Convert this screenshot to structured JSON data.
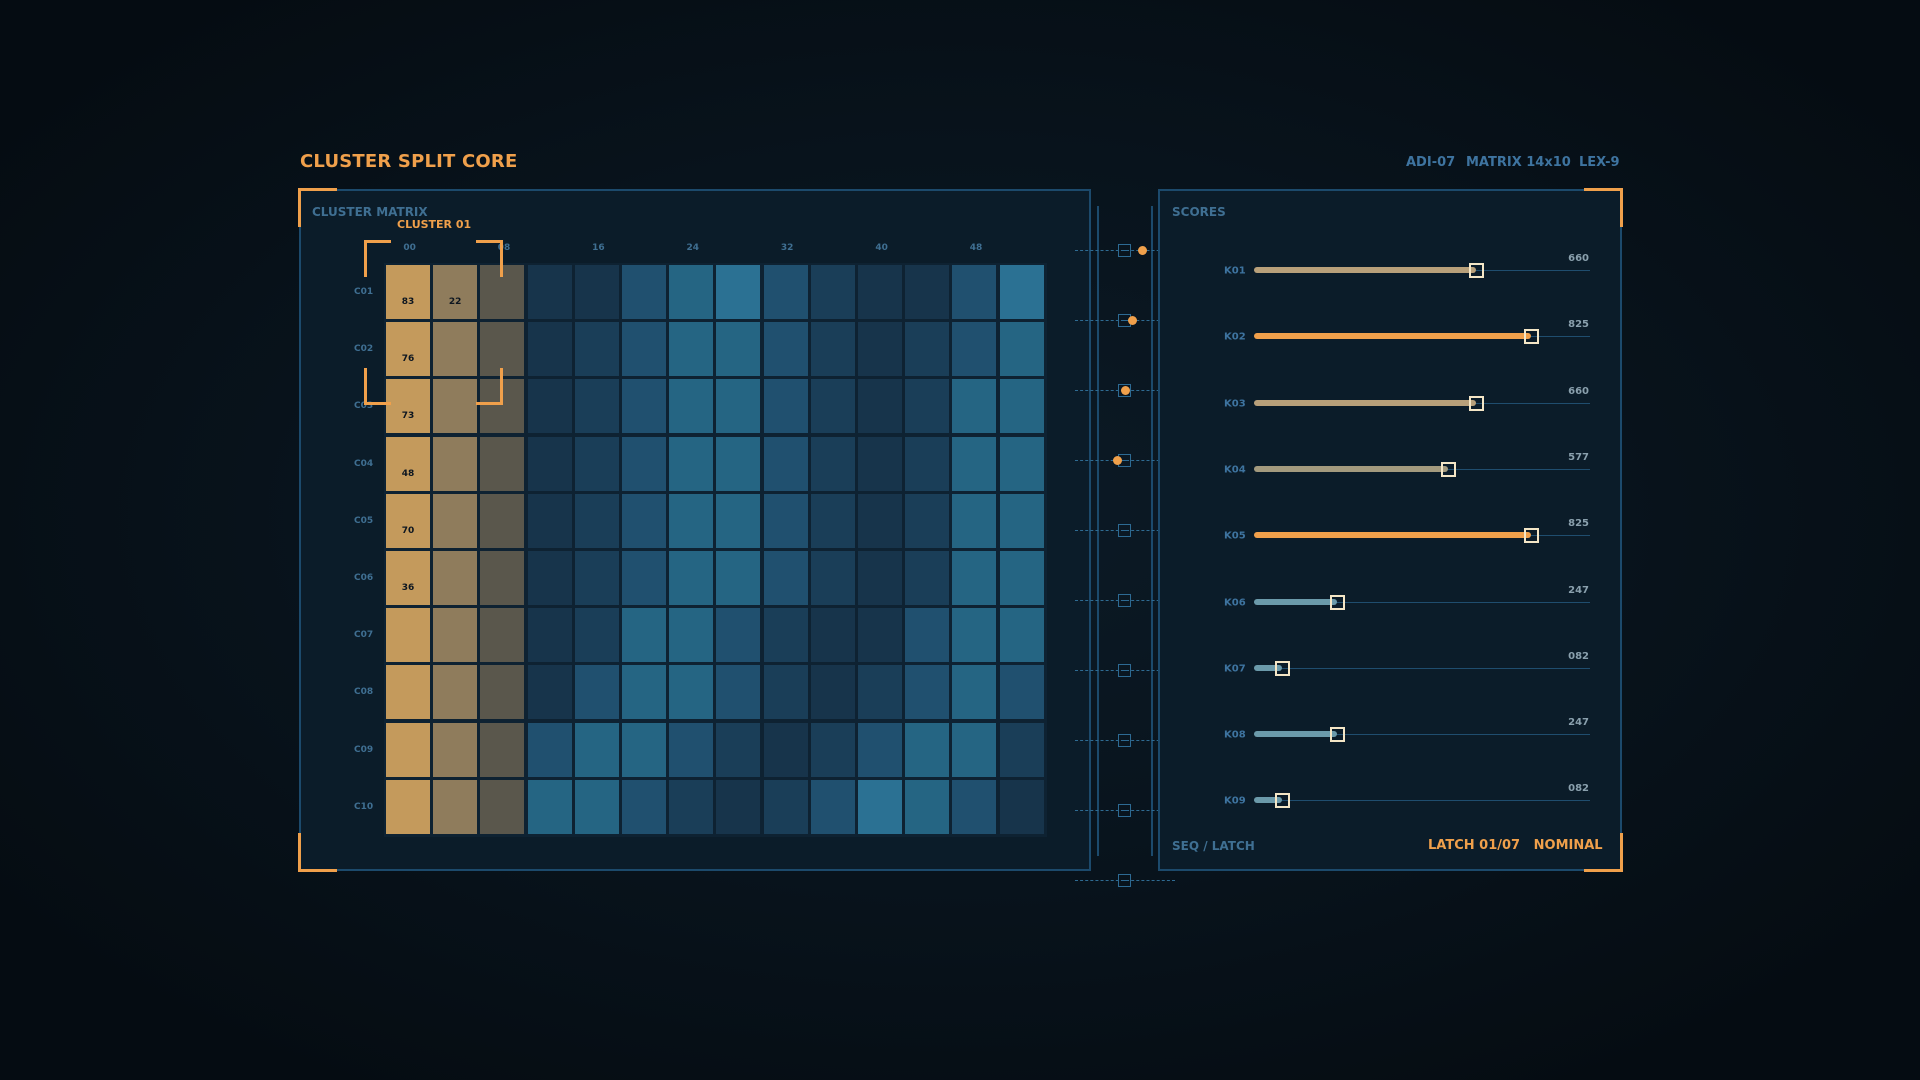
{
  "header": {
    "title": "CLUSTER SPLIT CORE",
    "meta": [
      "ADI-07",
      "MATRIX 14x10",
      "LEX-9"
    ]
  },
  "matrix_panel": {
    "label": "CLUSTER MATRIX",
    "selection_label": "CLUSTER 01",
    "column_labels": [
      "00",
      "08",
      "16",
      "24",
      "32",
      "40",
      "48"
    ],
    "row_labels": [
      "C01",
      "C02",
      "C03",
      "C04",
      "C05",
      "C06",
      "C07",
      "C08",
      "C09",
      "C10"
    ],
    "colors": [
      "#c49a5c",
      "#8f7c5c",
      "#5a574c",
      "#17344b",
      "#1a3e58",
      "#20506f",
      "#256583",
      "#2b7193",
      "#255e82",
      "#1f4d6c",
      "#193f5a",
      "#14324a"
    ],
    "rows": [
      {
        "colors": [
          0,
          1,
          2,
          3,
          3,
          5,
          6,
          7,
          5,
          4,
          3,
          3,
          5,
          7
        ],
        "values": [
          "83",
          "22"
        ]
      },
      {
        "colors": [
          0,
          1,
          2,
          3,
          4,
          5,
          6,
          6,
          5,
          4,
          3,
          4,
          5,
          6
        ],
        "values": [
          "76",
          ""
        ]
      },
      {
        "colors": [
          0,
          1,
          2,
          3,
          4,
          5,
          6,
          6,
          5,
          4,
          3,
          4,
          6,
          6
        ],
        "values": [
          "73",
          ""
        ]
      },
      {
        "colors": [
          0,
          1,
          2,
          3,
          4,
          5,
          6,
          6,
          5,
          4,
          3,
          4,
          6,
          6
        ],
        "values": [
          "48",
          ""
        ]
      },
      {
        "colors": [
          0,
          1,
          2,
          3,
          4,
          5,
          6,
          6,
          5,
          4,
          3,
          4,
          6,
          6
        ],
        "values": [
          "70",
          ""
        ]
      },
      {
        "colors": [
          0,
          1,
          2,
          3,
          4,
          5,
          6,
          6,
          5,
          4,
          3,
          4,
          6,
          6
        ],
        "values": [
          "36",
          ""
        ]
      },
      {
        "colors": [
          0,
          1,
          2,
          3,
          4,
          6,
          6,
          5,
          4,
          3,
          3,
          5,
          6,
          6
        ],
        "values": [
          "",
          ""
        ]
      },
      {
        "colors": [
          0,
          1,
          2,
          3,
          5,
          6,
          6,
          5,
          4,
          3,
          4,
          5,
          6,
          5
        ],
        "values": [
          "",
          ""
        ]
      },
      {
        "colors": [
          0,
          1,
          2,
          5,
          6,
          6,
          5,
          4,
          3,
          4,
          5,
          6,
          6,
          4
        ],
        "values": [
          "",
          ""
        ]
      },
      {
        "colors": [
          0,
          1,
          2,
          6,
          6,
          5,
          4,
          3,
          4,
          5,
          7,
          6,
          5,
          3
        ],
        "values": [
          "",
          ""
        ]
      }
    ]
  },
  "sequencer": {
    "dot_positions": [
      0.9,
      0.4,
      0.05,
      -0.35,
      null,
      null,
      null,
      null,
      null,
      null
    ]
  },
  "scores_panel": {
    "label": "SCORES",
    "items": [
      {
        "label": "K01",
        "value": "660",
        "fraction": 0.66,
        "color": "#b8a07a"
      },
      {
        "label": "K02",
        "value": "825",
        "fraction": 0.825,
        "color": "#f0a04b"
      },
      {
        "label": "K03",
        "value": "660",
        "fraction": 0.66,
        "color": "#b8a07a"
      },
      {
        "label": "K04",
        "value": "577",
        "fraction": 0.577,
        "color": "#a39a7e"
      },
      {
        "label": "K05",
        "value": "825",
        "fraction": 0.825,
        "color": "#f0a04b"
      },
      {
        "label": "K06",
        "value": "247",
        "fraction": 0.247,
        "color": "#6b9aaa"
      },
      {
        "label": "K07",
        "value": "082",
        "fraction": 0.082,
        "color": "#6b9aaa"
      },
      {
        "label": "K08",
        "value": "247",
        "fraction": 0.247,
        "color": "#6b9aaa"
      },
      {
        "label": "K09",
        "value": "082",
        "fraction": 0.082,
        "color": "#6b9aaa"
      }
    ],
    "footer_left": "SEQ / LATCH",
    "footer_right": "LATCH 01/07   NOMINAL"
  }
}
